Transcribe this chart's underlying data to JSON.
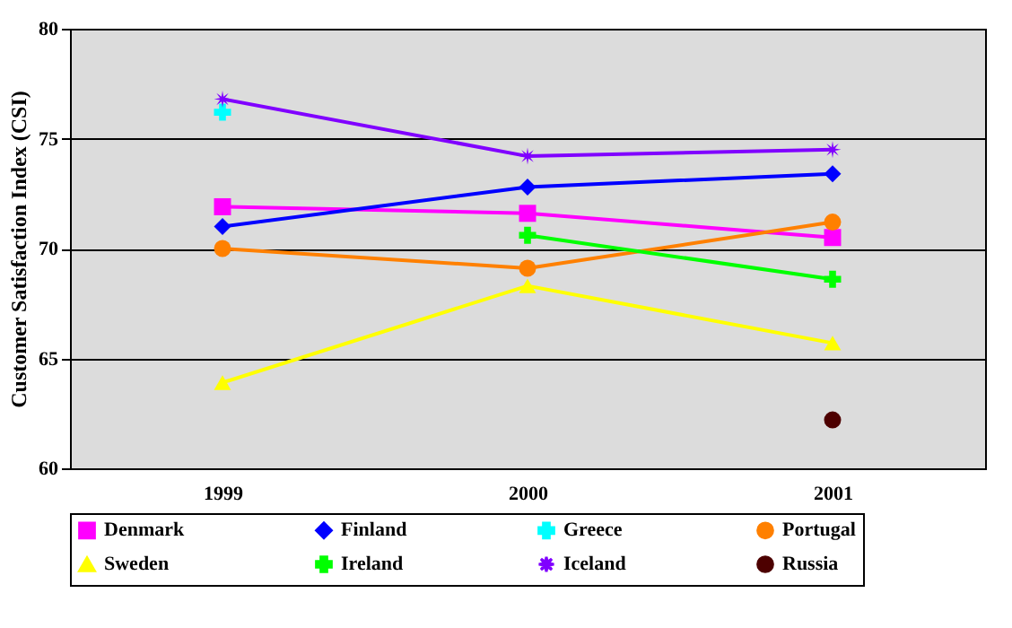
{
  "chart_data": {
    "type": "line",
    "ylabel": "Customer Satisfaction Index  (CSI)",
    "categories": [
      "1999",
      "2000",
      "2001"
    ],
    "ylim": [
      60,
      80
    ],
    "yticks": [
      60,
      65,
      70,
      75,
      80
    ],
    "grid": "y",
    "legend": "bottom",
    "line_style": "solid",
    "series": [
      {
        "name": "Denmark",
        "color": "#ff00ff",
        "marker": "square",
        "values": [
          71.9,
          71.6,
          70.5
        ]
      },
      {
        "name": "Finland",
        "color": "#0000ff",
        "marker": "diamond",
        "values": [
          71.0,
          72.8,
          73.4
        ]
      },
      {
        "name": "Greece",
        "color": "#00ffff",
        "marker": "cross",
        "values": [
          76.2,
          null,
          null
        ]
      },
      {
        "name": "Portugal",
        "color": "#ff8000",
        "marker": "circle",
        "values": [
          70.0,
          69.1,
          71.2
        ]
      },
      {
        "name": "Sweden",
        "color": "#ffff00",
        "marker": "triangle",
        "values": [
          63.9,
          68.3,
          65.7
        ]
      },
      {
        "name": "Ireland",
        "color": "#00ff00",
        "marker": "cross",
        "values": [
          null,
          70.6,
          68.6
        ]
      },
      {
        "name": "Iceland",
        "color": "#8000ff",
        "marker": "star",
        "values": [
          76.8,
          74.2,
          74.5
        ]
      },
      {
        "name": "Russia",
        "color": "#4d0000",
        "marker": "circle",
        "values": [
          null,
          null,
          62.2
        ]
      }
    ]
  }
}
